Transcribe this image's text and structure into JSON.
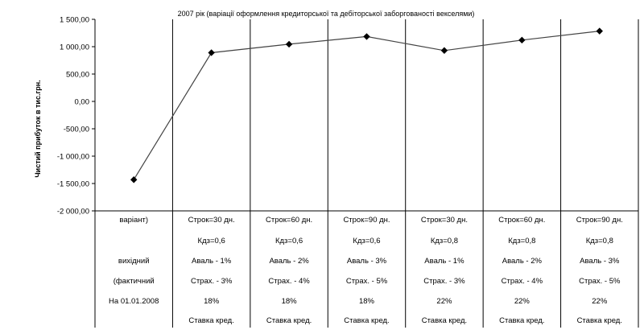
{
  "chart_data": {
    "type": "line",
    "title": "2007 рік (варіації  оформлення кредиторської та дебіторської заборгованості векселями)",
    "ylabel": "Чистий прибуток в тис.грн.",
    "xlabel": "",
    "ylim": [
      -2000,
      1500
    ],
    "y_ticks": [
      "1 500,00",
      "1 000,00",
      "500,00",
      "0,00",
      "-500,00",
      "-1 000,00",
      "-1 500,00",
      "-2 000,00"
    ],
    "grid": "vertical",
    "legend": "none",
    "marker": "diamond",
    "line_color": "#444444",
    "categories": [
      [
        "варіант)",
        "",
        "вихідний",
        "(фактичний",
        "На 01.01.2008",
        ""
      ],
      [
        "Строк=30 дн.",
        "Кдз=0,6",
        "Аваль - 1%",
        "Страх. - 3%",
        "18%",
        "Ставка кред."
      ],
      [
        "Строк=60 дн.",
        "Кдз=0,6",
        "Аваль - 2%",
        "Страх. - 4%",
        "18%",
        "Ставка кред."
      ],
      [
        "Строк=90 дн.",
        "Кдз=0,6",
        "Аваль - 3%",
        "Страх. - 5%",
        "18%",
        "Ставка кред."
      ],
      [
        "Строк=30 дн.",
        "Кдз=0,8",
        "Аваль - 1%",
        "Страх. - 3%",
        "22%",
        "Ставка кред."
      ],
      [
        "Строк=60 дн.",
        "Кдз=0,8",
        "Аваль - 2%",
        "Страх. - 4%",
        "22%",
        "Ставка кред."
      ],
      [
        "Строк=90 дн.",
        "Кдз=0,8",
        "Аваль - 3%",
        "Страх. - 5%",
        "22%",
        "Ставка кред."
      ]
    ],
    "values": [
      -1430,
      890,
      1045,
      1185,
      930,
      1120,
      1285
    ]
  }
}
